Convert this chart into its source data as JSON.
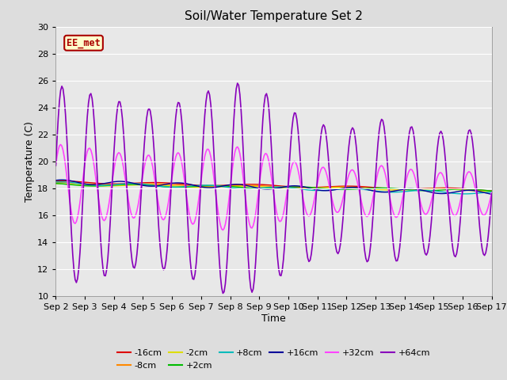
{
  "title": "Soil/Water Temperature Set 2",
  "xlabel": "Time",
  "ylabel": "Temperature (C)",
  "ylim": [
    10,
    30
  ],
  "xtick_labels": [
    "Sep 2",
    "Sep 3",
    "Sep 4",
    "Sep 5",
    "Sep 6",
    "Sep 7",
    "Sep 8",
    "Sep 9",
    "Sep 10",
    "Sep 11",
    "Sep 12",
    "Sep 13",
    "Sep 14",
    "Sep 15",
    "Sep 16",
    "Sep 17"
  ],
  "background_color": "#dddddd",
  "plot_bg": "#e8e8e8",
  "annotation_text": "EE_met",
  "annotation_bg": "#ffffcc",
  "annotation_border": "#aa0000",
  "annotation_text_color": "#aa0000",
  "series_colors": {
    "-16cm": "#dd0000",
    "-8cm": "#ff8800",
    "-2cm": "#dddd00",
    "+2cm": "#00bb00",
    "+8cm": "#00bbbb",
    "+16cm": "#000099",
    "+32cm": "#ff44ff",
    "+64cm": "#8800bb"
  },
  "series_order": [
    "-16cm",
    "-8cm",
    "-2cm",
    "+2cm",
    "+8cm",
    "+16cm",
    "+32cm",
    "+64cm"
  ],
  "legend_row1": [
    "-16cm",
    "-8cm",
    "-2cm",
    "+2cm",
    "+8cm",
    "+16cm"
  ],
  "legend_row2": [
    "+32cm",
    "+64cm"
  ]
}
